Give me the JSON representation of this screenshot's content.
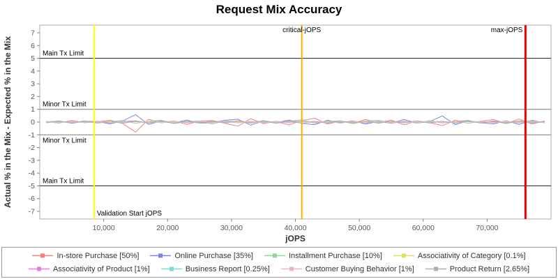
{
  "title": "Request Mix Accuracy",
  "chart_data": {
    "type": "line",
    "title": "Request Mix Accuracy",
    "xlabel": "jOPS",
    "ylabel": "Actual % in the Mix - Expected % in the Mix",
    "xlim": [
      0,
      80000
    ],
    "ylim": [
      -7.6,
      7.6
    ],
    "grid": false,
    "legend_position": "bottom",
    "x_ticks": [
      10000,
      20000,
      30000,
      40000,
      50000,
      60000,
      70000
    ],
    "x_tick_labels": [
      "10,000",
      "20,000",
      "30,000",
      "40,000",
      "50,000",
      "60,000",
      "70,000"
    ],
    "y_ticks": [
      -7,
      -6,
      -5,
      -4,
      -3,
      -2,
      -1,
      0,
      1,
      2,
      3,
      4,
      5,
      6,
      7
    ],
    "y_tick_labels": [
      "-7",
      "-6",
      "-5",
      "-4",
      "-3",
      "-2",
      "-1",
      "0",
      "1",
      "2",
      "3",
      "4",
      "5",
      "6",
      "7"
    ],
    "limit_lines": [
      {
        "label": "Main Tx Limit",
        "y": 5,
        "color": "#333350",
        "label_below": false
      },
      {
        "label": "Minor Tx Limit",
        "y": 1,
        "color": "#888888",
        "label_below": false
      },
      {
        "label": "Minor Tx Limit",
        "y": -1,
        "color": "#888888",
        "label_below": true
      },
      {
        "label": "Main Tx Limit",
        "y": -5,
        "color": "#333350",
        "label_below": false
      }
    ],
    "markers": [
      {
        "label": "Validation Start jOPS",
        "x": 8500,
        "color": "#ffff00",
        "width": 2,
        "label_pos": "bottom",
        "label_side": "right"
      },
      {
        "label": "critical-jOPS",
        "x": 41000,
        "color": "#ffaa00",
        "width": 2,
        "label_pos": "top",
        "label_side": "center"
      },
      {
        "label": "max-jOPS",
        "x": 76000,
        "color": "#ee0000",
        "width": 3,
        "label_pos": "top",
        "label_side": "left"
      }
    ],
    "x": [
      1000,
      3000,
      5000,
      7000,
      9000,
      11000,
      13000,
      15000,
      17000,
      19000,
      21000,
      23000,
      25000,
      27000,
      29000,
      31000,
      33000,
      35000,
      37000,
      39000,
      41000,
      43000,
      45000,
      47000,
      49000,
      51000,
      53000,
      55000,
      57000,
      59000,
      61000,
      63000,
      65000,
      67000,
      69000,
      71000,
      73000,
      75000,
      77000,
      79000
    ],
    "series": [
      {
        "name": "In-store Purchase [50%]",
        "color": "#f08080",
        "values": [
          0.05,
          -0.08,
          0.12,
          -0.05,
          0.02,
          0.15,
          -0.12,
          -0.78,
          0.22,
          -0.06,
          0.1,
          -0.18,
          0.08,
          0.12,
          -0.1,
          -0.32,
          0.26,
          -0.12,
          0.05,
          -0.22,
          0.12,
          0.3,
          -0.15,
          0.06,
          -0.1,
          0.2,
          -0.06,
          0.16,
          -0.22,
          0.1,
          -0.05,
          -0.28,
          0.15,
          -0.1,
          0.06,
          0.2,
          -0.12,
          0.24,
          -0.15,
          0.08
        ]
      },
      {
        "name": "Online Purchase [35%]",
        "color": "#8080e0",
        "values": [
          -0.04,
          0.1,
          -0.1,
          0.06,
          0.05,
          -0.14,
          0.1,
          0.58,
          -0.18,
          0.08,
          -0.06,
          0.16,
          -0.08,
          -0.06,
          0.14,
          0.22,
          -0.24,
          0.1,
          -0.04,
          0.16,
          -0.1,
          -0.2,
          0.14,
          -0.06,
          0.1,
          -0.16,
          0.06,
          -0.1,
          0.2,
          -0.08,
          0.04,
          0.48,
          -0.2,
          0.1,
          -0.06,
          -0.14,
          0.1,
          -0.18,
          0.14,
          -0.06
        ]
      },
      {
        "name": "Installment Purchase [10%]",
        "color": "#90d890",
        "values": [
          0.03,
          0.08,
          -0.06,
          0.1,
          -0.08,
          0.05,
          0.12,
          -0.1,
          0.07,
          0.15,
          -0.12,
          0.04,
          0.09,
          -0.15,
          0.1,
          0.05,
          -0.08,
          0.12,
          -0.1,
          0.06,
          0.18,
          -0.08,
          0.05,
          0.1,
          -0.12,
          0.07,
          0.15,
          -0.05,
          0.08,
          -0.1,
          0.12,
          -0.06,
          0.05,
          0.14,
          -0.08,
          0.07,
          -0.12,
          0.09,
          0.1,
          -0.05
        ]
      },
      {
        "name": "Associativity of Category [0.1%]",
        "color": "#e0e060",
        "values": [
          0.01,
          -0.02,
          0.02,
          -0.01,
          0.02,
          -0.02,
          0.01,
          0.03,
          -0.02,
          0.01,
          -0.03,
          0.02,
          -0.01,
          0.02,
          -0.02,
          0.03,
          -0.01,
          0.02,
          -0.03,
          0.01,
          0.02,
          -0.02,
          0.01,
          -0.01,
          0.03,
          -0.02,
          0.01,
          -0.03,
          0.02,
          -0.01,
          0.02,
          -0.02,
          0.01,
          0.03,
          -0.02,
          0.01,
          -0.01,
          0.02,
          -0.02,
          0.01
        ]
      },
      {
        "name": "Associativity of Product [1%]",
        "color": "#e080e0",
        "values": [
          0.04,
          -0.06,
          0.08,
          -0.04,
          0.06,
          -0.08,
          0.05,
          0.1,
          -0.07,
          0.04,
          -0.09,
          0.06,
          -0.04,
          0.08,
          -0.06,
          0.1,
          -0.05,
          0.07,
          -0.09,
          0.04,
          0.08,
          -0.06,
          0.05,
          -0.04,
          0.09,
          -0.07,
          0.04,
          -0.1,
          0.06,
          -0.04,
          0.08,
          -0.06,
          0.05,
          0.09,
          -0.07,
          0.04,
          -0.05,
          0.08,
          -0.06,
          0.04
        ]
      },
      {
        "name": "Business Report [0.25%]",
        "color": "#80d8d8",
        "values": [
          -0.02,
          0.04,
          -0.05,
          0.03,
          -0.04,
          0.06,
          -0.03,
          0.05,
          -0.06,
          0.03,
          0.05,
          -0.04,
          0.06,
          -0.03,
          0.04,
          -0.06,
          0.05,
          -0.03,
          0.06,
          -0.04,
          0.03,
          0.05,
          -0.06,
          0.04,
          -0.03,
          0.06,
          -0.05,
          0.03,
          -0.04,
          0.06,
          -0.03,
          0.05,
          -0.06,
          0.04,
          0.03,
          -0.05,
          0.06,
          -0.04,
          0.03,
          -0.05
        ]
      },
      {
        "name": "Customer Buying Behavior [1%]",
        "color": "#f0b0c8",
        "values": [
          0.05,
          -0.07,
          0.06,
          -0.05,
          0.08,
          -0.06,
          0.07,
          -0.09,
          0.06,
          -0.05,
          0.08,
          -0.07,
          0.05,
          -0.06,
          0.09,
          -0.05,
          0.07,
          -0.08,
          0.05,
          -0.06,
          0.08,
          -0.05,
          0.07,
          -0.09,
          0.06,
          -0.05,
          0.08,
          -0.06,
          0.05,
          -0.07,
          0.09,
          -0.05,
          0.06,
          -0.08,
          0.07,
          -0.05,
          0.06,
          -0.07,
          0.08,
          -0.05
        ]
      },
      {
        "name": "Product Return [2.65%]",
        "color": "#b0b0b0",
        "values": [
          -0.06,
          0.08,
          -0.07,
          0.09,
          -0.08,
          0.06,
          -0.1,
          0.08,
          -0.06,
          0.1,
          -0.08,
          0.07,
          -0.09,
          0.06,
          -0.08,
          0.1,
          -0.06,
          0.09,
          -0.07,
          0.08,
          -0.1,
          0.06,
          -0.08,
          0.09,
          -0.06,
          0.08,
          -0.1,
          0.07,
          -0.06,
          0.09,
          -0.08,
          0.06,
          -0.09,
          0.08,
          -0.07,
          0.1,
          -0.06,
          0.08,
          -0.09,
          0.06
        ]
      }
    ],
    "legend_rows": [
      [
        0,
        1,
        2,
        3
      ],
      [
        4,
        5,
        6,
        7
      ]
    ]
  }
}
